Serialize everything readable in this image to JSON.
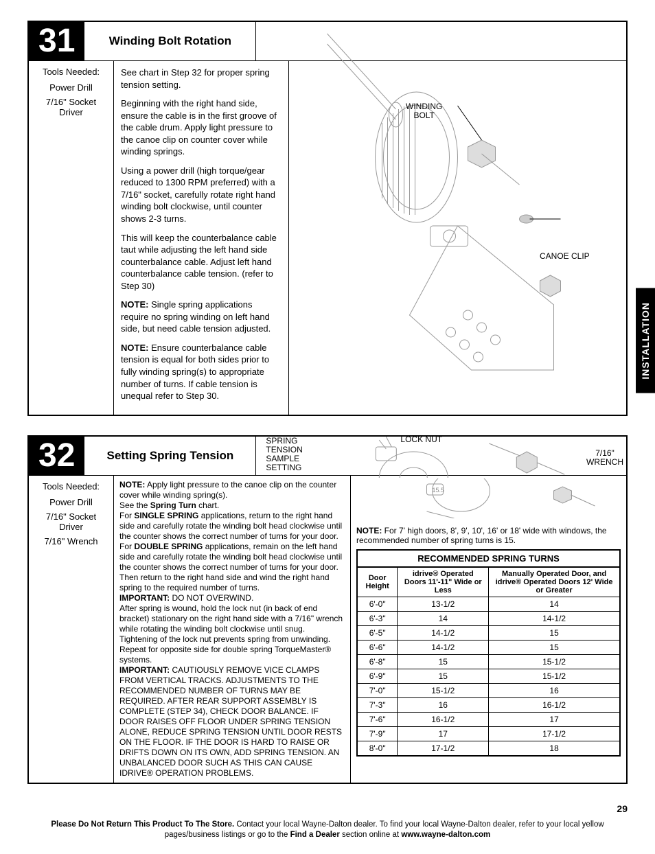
{
  "sideTab": "INSTALLATION",
  "step31": {
    "number": "31",
    "title": "Winding Bolt Rotation",
    "toolsLabel": "Tools Needed:",
    "tools": [
      "Power Drill",
      "7/16\" Socket Driver"
    ],
    "paragraphs": [
      "See chart in Step 32 for proper spring tension setting.",
      "Beginning with the right hand side, ensure the cable is in the first groove of the cable drum. Apply light pressure to the canoe clip on counter cover while winding springs.",
      "Using a power drill (high torque/gear reduced to 1300 RPM preferred) with a 7/16\" socket, carefully rotate right hand winding bolt clockwise, until counter shows 2-3 turns.",
      "This will keep the counterbalance cable taut while adjusting the left hand side counterbalance cable. Adjust left hand counterbalance cable tension. (refer to Step 30)"
    ],
    "note1Label": "NOTE:",
    "note1": " Single spring applications require no spring winding on left hand side, but need cable tension adjusted.",
    "note2Label": "NOTE:",
    "note2": " Ensure counterbalance cable tension is equal for both sides prior to fully winding spring(s) to appropriate number of turns. If cable tension is unequal refer to Step 30.",
    "callouts": {
      "windingBolt": "WINDING\nBOLT",
      "canoeClip": "CANOE CLIP"
    }
  },
  "step32": {
    "number": "32",
    "title": "Setting Spring Tension",
    "toolsLabel": "Tools Needed:",
    "tools": [
      "Power Drill",
      "7/16\" Socket Driver",
      "7/16\" Wrench"
    ],
    "p1Label": "NOTE:",
    "p1": " Apply light pressure to the canoe clip on the counter cover while winding spring(s).",
    "p2a": "See the ",
    "p2b": "Spring Turn",
    "p2c": " chart.",
    "p3a": "For ",
    "p3b": "SINGLE SPRING",
    "p3c": " applications, return to the right hand side and carefully rotate the winding bolt head clockwise until the counter shows the correct number of turns for your door.",
    "p4a": "For ",
    "p4b": "DOUBLE SPRING",
    "p4c": " applications, remain on the left hand side and carefully rotate the winding bolt head clockwise until the counter shows the correct number of turns for your door. Then return to the right hand side and wind the right hand spring to the required number of turns.",
    "imp1Label": "IMPORTANT:",
    "imp1": " DO NOT OVERWIND.",
    "p5": "After spring is wound, hold the lock nut (in back of end bracket) stationary on the right hand side with a 7/16\" wrench while rotating the winding bolt clockwise until snug. Tightening of the lock nut prevents spring from unwinding. Repeat for opposite side for double spring TorqueMaster® systems.",
    "imp2Label": "IMPORTANT:",
    "imp2": " CAUTIOUSLY REMOVE VICE CLAMPS FROM VERTICAL TRACKS. ADJUSTMENTS TO THE RECOMMENDED NUMBER OF TURNS MAY BE REQUIRED. AFTER REAR SUPPORT ASSEMBLY IS COMPLETE (STEP 34), CHECK DOOR BALANCE. IF DOOR RAISES OFF FLOOR UNDER SPRING TENSION ALONE, REDUCE SPRING TENSION UNTIL DOOR RESTS ON THE FLOOR. IF THE DOOR IS HARD TO RAISE OR DRIFTS DOWN ON ITS OWN, ADD SPRING TENSION. AN UNBALANCED DOOR SUCH AS THIS CAN CAUSE IDRIVE® OPERATION PROBLEMS.",
    "callouts": {
      "springTension": "SPRING\nTENSION\nSAMPLE\nSETTING",
      "lockNut": "LOCK NUT",
      "wrench": "7/16\"\nWRENCH"
    },
    "tableNoteLabel": "NOTE:",
    "tableNote": " For 7' high doors, 8', 9', 10', 16' or 18' wide with windows, the recommended number of spring turns is 15.",
    "table": {
      "caption": "RECOMMENDED SPRING TURNS",
      "headers": [
        "Door Height",
        "idrive® Operated Doors 11'-11\" Wide or Less",
        "Manually Operated Door, and idrive® Operated Doors 12' Wide or Greater"
      ],
      "rows": [
        [
          "6'-0\"",
          "13-1/2",
          "14"
        ],
        [
          "6'-3\"",
          "14",
          "14-1/2"
        ],
        [
          "6'-5\"",
          "14-1/2",
          "15"
        ],
        [
          "6'-6\"",
          "14-1/2",
          "15"
        ],
        [
          "6'-8\"",
          "15",
          "15-1/2"
        ],
        [
          "6'-9\"",
          "15",
          "15-1/2"
        ],
        [
          "7'-0\"",
          "15-1/2",
          "16"
        ],
        [
          "7'-3\"",
          "16",
          "16-1/2"
        ],
        [
          "7'-6\"",
          "16-1/2",
          "17"
        ],
        [
          "7'-9\"",
          "17",
          "17-1/2"
        ],
        [
          "8'-0\"",
          "17-1/2",
          "18"
        ]
      ]
    }
  },
  "pageNumber": "29",
  "footer": {
    "boldLead": "Please Do Not Return This Product To The Store.",
    "rest1": " Contact your local Wayne-Dalton dealer. To find your local Wayne-Dalton dealer, refer to your local yellow pages/business listings or go to the ",
    "bold2": "Find a Dealer",
    "rest2": " section online at ",
    "url": "www.wayne-dalton.com"
  }
}
